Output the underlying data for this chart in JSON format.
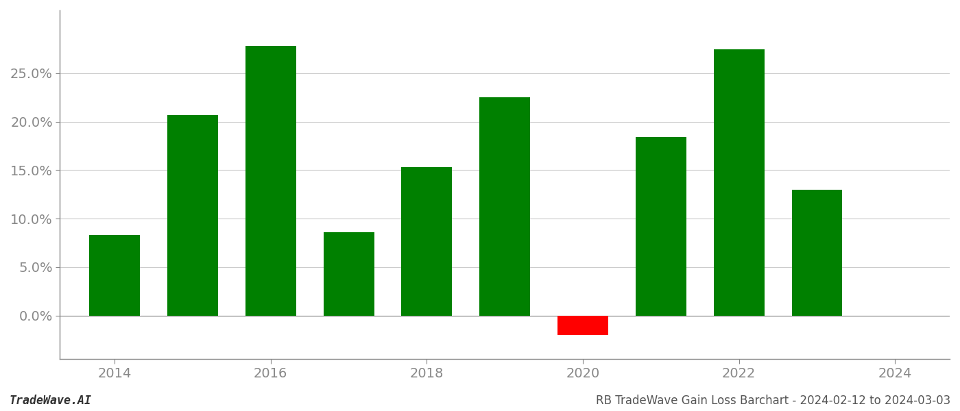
{
  "years": [
    2014,
    2015,
    2016,
    2017,
    2018,
    2019,
    2020,
    2021,
    2022,
    2023
  ],
  "values": [
    0.083,
    0.207,
    0.278,
    0.086,
    0.153,
    0.225,
    -0.02,
    0.184,
    0.275,
    0.13
  ],
  "colors": [
    "#008000",
    "#008000",
    "#008000",
    "#008000",
    "#008000",
    "#008000",
    "#ff0000",
    "#008000",
    "#008000",
    "#008000"
  ],
  "ylim": [
    -0.045,
    0.315
  ],
  "yticks": [
    0.0,
    0.05,
    0.1,
    0.15,
    0.2,
    0.25
  ],
  "xticks": [
    2014,
    2016,
    2018,
    2020,
    2022,
    2024
  ],
  "xlim": [
    2013.3,
    2024.7
  ],
  "footnote_left": "TradeWave.AI",
  "footnote_right": "RB TradeWave Gain Loss Barchart - 2024-02-12 to 2024-03-03",
  "background_color": "#ffffff",
  "grid_color": "#cccccc",
  "bar_width": 0.65,
  "figsize": [
    14.0,
    6.0
  ],
  "dpi": 100,
  "tick_fontsize": 14,
  "footnote_fontsize": 12
}
